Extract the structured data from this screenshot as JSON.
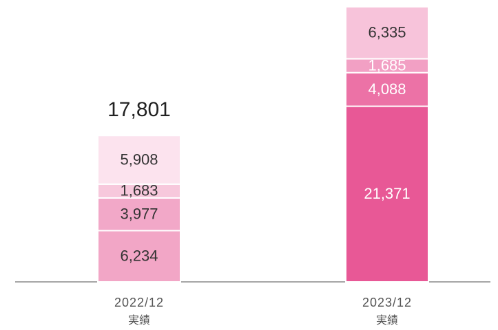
{
  "chart_data": {
    "type": "stacked_bar",
    "categories": [
      "2022/12",
      "2023/12"
    ],
    "sublabels": [
      "実績",
      "実績"
    ],
    "series": [
      {
        "colors": [
          "#f2a6c6",
          "#e85896"
        ],
        "label_colors": [
          "#333333",
          "#ffffff"
        ],
        "values": [
          6234,
          21371
        ],
        "value_labels": [
          "6,234",
          "21,371"
        ]
      },
      {
        "colors": [
          "#f2a8c8",
          "#ec72a6"
        ],
        "label_colors": [
          "#333333",
          "#ffffff"
        ],
        "values": [
          3977,
          4088
        ],
        "value_labels": [
          "3,977",
          "4,088"
        ]
      },
      {
        "colors": [
          "#f7c8dc",
          "#f2a0c4"
        ],
        "label_colors": [
          "#333333",
          "#ffffff"
        ],
        "values": [
          1683,
          1685
        ],
        "value_labels": [
          "1,683",
          "1,685"
        ]
      },
      {
        "colors": [
          "#fce3ee",
          "#f7c3da"
        ],
        "label_colors": [
          "#333333",
          "#333333"
        ],
        "values": [
          5908,
          6335
        ],
        "value_labels": [
          "5,908",
          "6,335"
        ]
      }
    ],
    "totals": [
      17801,
      null
    ],
    "total_labels": [
      "17,801",
      null
    ],
    "ylim": [
      0,
      34300
    ]
  }
}
